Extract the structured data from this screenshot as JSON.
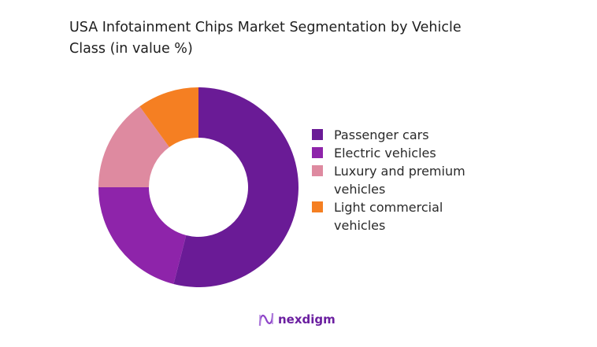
{
  "chart_data": {
    "type": "pie",
    "donut": true,
    "title": "USA Infotainment Chips Market Segmentation by Vehicle Class (in value %)",
    "categories": [
      "Passenger cars",
      "Electric vehicles",
      "Luxury and premium vehicles",
      "Light commercial vehicles"
    ],
    "values": [
      54,
      21,
      15,
      10
    ],
    "colors": [
      "#6a1b96",
      "#8e24aa",
      "#de8aa0",
      "#f57f22"
    ],
    "legend_position": "right"
  },
  "brand": {
    "name": "nexdigm",
    "color": "#6b1fa0"
  }
}
